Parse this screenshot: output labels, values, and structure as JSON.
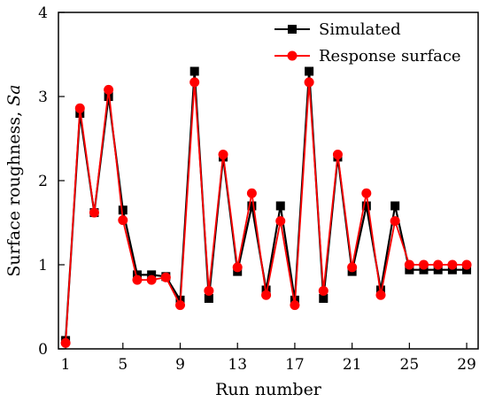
{
  "chart_data": {
    "type": "line",
    "xlabel": "Run number",
    "ylabel_prefix": "Surface roughness, ",
    "ylabel_symbol": "Sa",
    "xlim": [
      0.5,
      29.8
    ],
    "ylim": [
      0,
      4
    ],
    "xticks": [
      1,
      5,
      9,
      13,
      17,
      21,
      25,
      29
    ],
    "yticks": [
      0,
      1,
      2,
      3,
      4
    ],
    "grid": false,
    "legend_position": "top-right",
    "x": [
      1,
      2,
      3,
      4,
      5,
      6,
      7,
      8,
      9,
      10,
      11,
      12,
      13,
      14,
      15,
      16,
      17,
      18,
      19,
      20,
      21,
      22,
      23,
      24,
      25,
      26,
      27,
      28,
      29
    ],
    "series": [
      {
        "name": "Simulated",
        "color": "#000000",
        "marker": "square",
        "values": [
          0.1,
          2.8,
          1.62,
          3.0,
          1.65,
          0.88,
          0.88,
          0.86,
          0.58,
          3.3,
          0.6,
          2.28,
          0.92,
          1.7,
          0.7,
          1.7,
          0.58,
          3.3,
          0.6,
          2.28,
          0.92,
          1.7,
          0.7,
          1.7,
          0.94,
          0.94,
          0.94,
          0.94,
          0.94
        ]
      },
      {
        "name": "Response surface",
        "color": "#ff0000",
        "marker": "circle",
        "values": [
          0.07,
          2.86,
          1.62,
          3.08,
          1.53,
          0.82,
          0.82,
          0.85,
          0.52,
          3.17,
          0.69,
          2.31,
          0.97,
          1.85,
          0.64,
          1.52,
          0.52,
          3.17,
          0.69,
          2.31,
          0.97,
          1.85,
          0.64,
          1.52,
          1.0,
          1.0,
          1.0,
          1.0,
          1.0
        ]
      }
    ]
  }
}
